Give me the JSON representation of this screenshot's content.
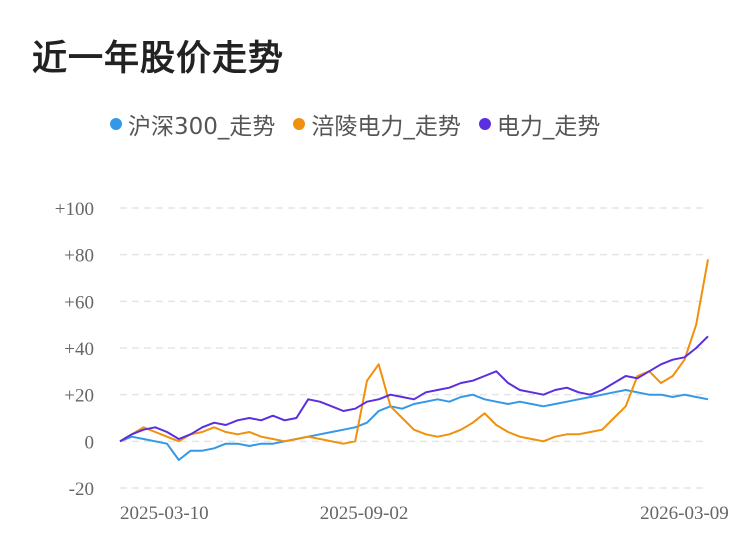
{
  "title": "近一年股价走势",
  "colors": {
    "hs300": "#3498e8",
    "fuling": "#f0900c",
    "dianli": "#5b2ee0",
    "grid": "#e5e5e5"
  },
  "chart_data": {
    "type": "line",
    "ylim": [
      -20,
      100
    ],
    "yticks": [
      "+100",
      "+80",
      "+60",
      "+40",
      "+20",
      "0",
      "-20"
    ],
    "ytick_values": [
      100,
      80,
      60,
      40,
      20,
      0,
      -20
    ],
    "xticks": [
      "2025-03-10",
      "2025-09-02",
      "2026-03-09"
    ],
    "xtick_values": [
      0,
      0.415,
      0.96
    ],
    "grid": true,
    "legend_position": "top",
    "series": [
      {
        "name": "沪深300_走势",
        "color": "#3498e8",
        "x": [
          0,
          0.02,
          0.04,
          0.06,
          0.08,
          0.1,
          0.12,
          0.14,
          0.16,
          0.18,
          0.2,
          0.22,
          0.24,
          0.26,
          0.28,
          0.3,
          0.32,
          0.34,
          0.36,
          0.38,
          0.4,
          0.42,
          0.44,
          0.46,
          0.48,
          0.5,
          0.52,
          0.54,
          0.56,
          0.58,
          0.6,
          0.62,
          0.64,
          0.66,
          0.68,
          0.7,
          0.72,
          0.74,
          0.76,
          0.78,
          0.8,
          0.82,
          0.84,
          0.86,
          0.88,
          0.9,
          0.92,
          0.94,
          0.96,
          0.98,
          1.0
        ],
        "values": [
          0,
          2,
          1,
          0,
          -1,
          -8,
          -4,
          -4,
          -3,
          -1,
          -1,
          -2,
          -1,
          -1,
          0,
          1,
          2,
          3,
          4,
          5,
          6,
          8,
          13,
          15,
          14,
          16,
          17,
          18,
          17,
          19,
          20,
          18,
          17,
          16,
          17,
          16,
          15,
          16,
          17,
          18,
          19,
          20,
          21,
          22,
          21,
          20,
          20,
          19,
          20,
          19,
          18
        ]
      },
      {
        "name": "涪陵电力_走势",
        "color": "#f0900c",
        "x": [
          0,
          0.02,
          0.04,
          0.06,
          0.08,
          0.1,
          0.12,
          0.14,
          0.16,
          0.18,
          0.2,
          0.22,
          0.24,
          0.26,
          0.28,
          0.3,
          0.32,
          0.34,
          0.36,
          0.38,
          0.4,
          0.42,
          0.44,
          0.46,
          0.48,
          0.5,
          0.52,
          0.54,
          0.56,
          0.58,
          0.6,
          0.62,
          0.64,
          0.66,
          0.68,
          0.7,
          0.72,
          0.74,
          0.76,
          0.78,
          0.8,
          0.82,
          0.84,
          0.86,
          0.88,
          0.9,
          0.92,
          0.94,
          0.96,
          0.98,
          1.0
        ],
        "values": [
          0,
          3,
          6,
          4,
          2,
          0,
          3,
          4,
          6,
          4,
          3,
          4,
          2,
          1,
          0,
          1,
          2,
          1,
          0,
          -1,
          0,
          26,
          33,
          15,
          10,
          5,
          3,
          2,
          3,
          5,
          8,
          12,
          7,
          4,
          2,
          1,
          0,
          2,
          3,
          3,
          4,
          5,
          10,
          15,
          28,
          30,
          25,
          28,
          35,
          50,
          78
        ]
      },
      {
        "name": "电力_走势",
        "color": "#5b2ee0",
        "x": [
          0,
          0.02,
          0.04,
          0.06,
          0.08,
          0.1,
          0.12,
          0.14,
          0.16,
          0.18,
          0.2,
          0.22,
          0.24,
          0.26,
          0.28,
          0.3,
          0.32,
          0.34,
          0.36,
          0.38,
          0.4,
          0.42,
          0.44,
          0.46,
          0.48,
          0.5,
          0.52,
          0.54,
          0.56,
          0.58,
          0.6,
          0.62,
          0.64,
          0.66,
          0.68,
          0.7,
          0.72,
          0.74,
          0.76,
          0.78,
          0.8,
          0.82,
          0.84,
          0.86,
          0.88,
          0.9,
          0.92,
          0.94,
          0.96,
          0.98,
          1.0
        ],
        "values": [
          0,
          3,
          5,
          6,
          4,
          1,
          3,
          6,
          8,
          7,
          9,
          10,
          9,
          11,
          9,
          10,
          18,
          17,
          15,
          13,
          14,
          17,
          18,
          20,
          19,
          18,
          21,
          22,
          23,
          25,
          26,
          28,
          30,
          25,
          22,
          21,
          20,
          22,
          23,
          21,
          20,
          22,
          25,
          28,
          27,
          30,
          33,
          35,
          36,
          40,
          45
        ]
      }
    ]
  }
}
